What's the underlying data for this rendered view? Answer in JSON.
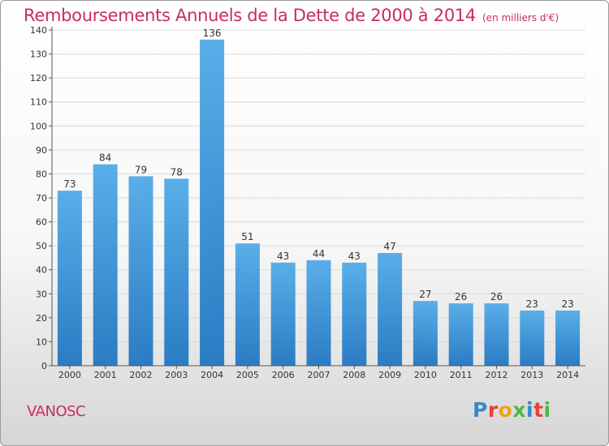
{
  "chart_data": {
    "type": "bar",
    "title": "Remboursements Annuels de la Dette de 2000 à 2014",
    "unit_note": "(en milliers d'€)",
    "categories": [
      "2000",
      "2001",
      "2002",
      "2003",
      "2004",
      "2005",
      "2006",
      "2007",
      "2008",
      "2009",
      "2010",
      "2011",
      "2012",
      "2013",
      "2014"
    ],
    "values": [
      73,
      84,
      79,
      78,
      136,
      51,
      43,
      44,
      43,
      47,
      27,
      26,
      26,
      23,
      23
    ],
    "ylim": [
      0,
      140
    ],
    "yticks": [
      0,
      10,
      20,
      30,
      40,
      50,
      60,
      70,
      80,
      90,
      100,
      110,
      120,
      130,
      140
    ],
    "grid": true,
    "bar_color_top": "#5aaee8",
    "bar_color_bottom": "#2b7cc4"
  },
  "commune": "VANOSC",
  "logo": {
    "text": "Proxiti",
    "letters": [
      {
        "ch": "P",
        "color": "#3a86c8"
      },
      {
        "ch": "r",
        "color": "#e8413c"
      },
      {
        "ch": "o",
        "color": "#f2a11e"
      },
      {
        "ch": "x",
        "color": "#4ab84a"
      },
      {
        "ch": "i",
        "color": "#3a86c8"
      },
      {
        "ch": "t",
        "color": "#e8413c"
      },
      {
        "ch": "i",
        "color": "#4ab84a"
      }
    ]
  },
  "colors": {
    "accent": "#c72c63",
    "grid": "#d9d9d9",
    "axis": "#555555"
  }
}
